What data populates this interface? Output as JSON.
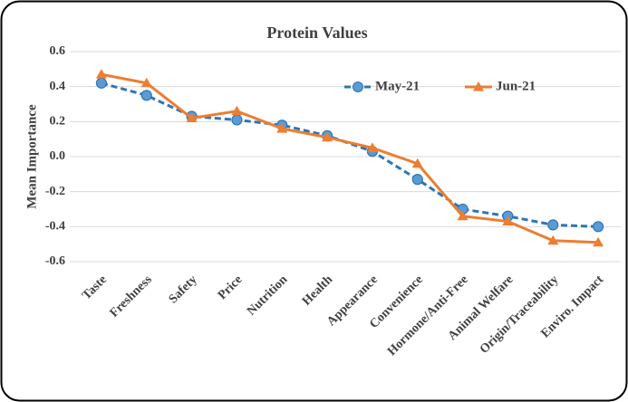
{
  "chart_data": {
    "type": "line",
    "title": "Protein Values",
    "y_label": "Mean Importance",
    "categories": [
      "Taste",
      "Freshness",
      "Safety",
      "Price",
      "Nutrition",
      "Health",
      "Appearance",
      "Convenience",
      "Hormone/Anti-Free",
      "Animal Welfare",
      "Origin/Traceability",
      "Enviro. Impact"
    ],
    "series": [
      {
        "name": "May-21",
        "color": "#2e75b6",
        "marker_color": "#5b9bd5",
        "dashed": true,
        "marker": "circle",
        "values": [
          0.42,
          0.35,
          0.23,
          0.21,
          0.18,
          0.12,
          0.03,
          -0.13,
          -0.3,
          -0.34,
          -0.39,
          -0.4
        ]
      },
      {
        "name": "Jun-21",
        "color": "#ed7d31",
        "marker_color": "#ed7d31",
        "dashed": false,
        "marker": "triangle",
        "values": [
          0.47,
          0.42,
          0.22,
          0.26,
          0.16,
          0.11,
          0.05,
          -0.04,
          -0.34,
          -0.37,
          -0.48,
          -0.49
        ]
      }
    ],
    "ylim": [
      -0.6,
      0.6
    ],
    "yticks": [
      0.6,
      0.4,
      0.2,
      {
        "value": 0,
        "label": "0.0"
      },
      -0.2,
      -0.4,
      -0.6
    ],
    "grid": true,
    "legend": "upper right"
  }
}
